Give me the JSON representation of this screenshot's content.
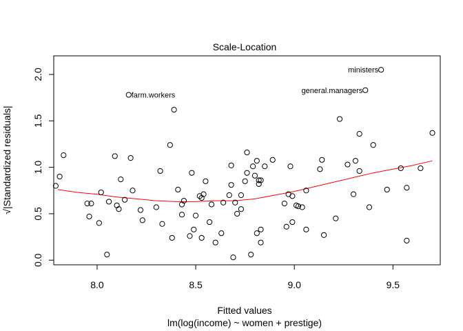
{
  "chart_data": {
    "type": "scatter",
    "title": "Scale-Location",
    "xlabel": "Fitted values",
    "subtitle": "lm(log(income) ~ women + prestige)",
    "ylabel": "√|Standardized residuals|",
    "xlim": [
      7.78,
      9.74
    ],
    "ylim": [
      -0.05,
      2.2
    ],
    "x_ticks": [
      8.0,
      8.5,
      9.0,
      9.5
    ],
    "x_tick_labels": [
      "8.0",
      "8.5",
      "9.0",
      "9.5"
    ],
    "y_ticks": [
      0.0,
      0.5,
      1.0,
      1.5,
      2.0
    ],
    "y_tick_labels": [
      "0.0",
      "0.5",
      "1.0",
      "1.5",
      "2.0"
    ],
    "grid": false,
    "point_color": "#000000",
    "smooth_color": "#ff0000",
    "points": [
      {
        "x": 8.16,
        "y": 1.78,
        "label": "farm.workers"
      },
      {
        "x": 9.36,
        "y": 1.83,
        "label": "general.managers"
      },
      {
        "x": 9.44,
        "y": 2.05,
        "label": "ministers"
      },
      {
        "x": 7.79,
        "y": 0.8
      },
      {
        "x": 7.81,
        "y": 0.9
      },
      {
        "x": 7.83,
        "y": 1.13
      },
      {
        "x": 7.95,
        "y": 0.61
      },
      {
        "x": 7.96,
        "y": 0.47
      },
      {
        "x": 7.97,
        "y": 0.61
      },
      {
        "x": 8.01,
        "y": 0.4
      },
      {
        "x": 8.02,
        "y": 0.73
      },
      {
        "x": 8.05,
        "y": 0.06
      },
      {
        "x": 8.06,
        "y": 0.63
      },
      {
        "x": 8.09,
        "y": 1.12
      },
      {
        "x": 8.1,
        "y": 0.59
      },
      {
        "x": 8.11,
        "y": 0.55
      },
      {
        "x": 8.12,
        "y": 0.87
      },
      {
        "x": 8.14,
        "y": 0.65
      },
      {
        "x": 8.17,
        "y": 1.1
      },
      {
        "x": 8.18,
        "y": 0.75
      },
      {
        "x": 8.22,
        "y": 0.54
      },
      {
        "x": 8.23,
        "y": 0.43
      },
      {
        "x": 8.3,
        "y": 0.57
      },
      {
        "x": 8.32,
        "y": 0.96
      },
      {
        "x": 8.33,
        "y": 0.39
      },
      {
        "x": 8.37,
        "y": 1.24
      },
      {
        "x": 8.38,
        "y": 0.24
      },
      {
        "x": 8.39,
        "y": 1.62
      },
      {
        "x": 8.41,
        "y": 0.76
      },
      {
        "x": 8.43,
        "y": 0.6
      },
      {
        "x": 8.43,
        "y": 0.49
      },
      {
        "x": 8.44,
        "y": 0.64
      },
      {
        "x": 8.47,
        "y": 0.26
      },
      {
        "x": 8.48,
        "y": 0.94
      },
      {
        "x": 8.49,
        "y": 0.33
      },
      {
        "x": 8.5,
        "y": 0.48
      },
      {
        "x": 8.52,
        "y": 0.69
      },
      {
        "x": 8.53,
        "y": 0.24
      },
      {
        "x": 8.53,
        "y": 0.67
      },
      {
        "x": 8.54,
        "y": 0.71
      },
      {
        "x": 8.55,
        "y": 0.85
      },
      {
        "x": 8.57,
        "y": 0.41
      },
      {
        "x": 8.58,
        "y": 0.6
      },
      {
        "x": 8.6,
        "y": 0.19
      },
      {
        "x": 8.63,
        "y": 0.29
      },
      {
        "x": 8.64,
        "y": 0.62
      },
      {
        "x": 8.67,
        "y": 0.7
      },
      {
        "x": 8.68,
        "y": 1.02
      },
      {
        "x": 8.68,
        "y": 0.81
      },
      {
        "x": 8.69,
        "y": 0.03
      },
      {
        "x": 8.7,
        "y": 0.62
      },
      {
        "x": 8.71,
        "y": 0.5
      },
      {
        "x": 8.73,
        "y": 0.7
      },
      {
        "x": 8.73,
        "y": 0.55
      },
      {
        "x": 8.75,
        "y": 0.85
      },
      {
        "x": 8.76,
        "y": 1.16
      },
      {
        "x": 8.76,
        "y": 0.94
      },
      {
        "x": 8.78,
        "y": 0.06
      },
      {
        "x": 8.79,
        "y": 1.01
      },
      {
        "x": 8.8,
        "y": 0.91
      },
      {
        "x": 8.81,
        "y": 1.07
      },
      {
        "x": 8.81,
        "y": 0.29
      },
      {
        "x": 8.82,
        "y": 0.86
      },
      {
        "x": 8.82,
        "y": 0.82
      },
      {
        "x": 8.83,
        "y": 0.33
      },
      {
        "x": 8.83,
        "y": 0.19
      },
      {
        "x": 8.83,
        "y": 0.86
      },
      {
        "x": 8.85,
        "y": 1.01
      },
      {
        "x": 8.89,
        "y": 1.08
      },
      {
        "x": 8.95,
        "y": 0.61
      },
      {
        "x": 8.96,
        "y": 0.36
      },
      {
        "x": 8.97,
        "y": 0.71
      },
      {
        "x": 8.98,
        "y": 1.01
      },
      {
        "x": 8.99,
        "y": 0.69
      },
      {
        "x": 8.99,
        "y": 0.41
      },
      {
        "x": 9.01,
        "y": 0.59
      },
      {
        "x": 9.02,
        "y": 0.58
      },
      {
        "x": 9.04,
        "y": 0.57
      },
      {
        "x": 9.06,
        "y": 0.75
      },
      {
        "x": 9.06,
        "y": 0.33
      },
      {
        "x": 9.13,
        "y": 0.98
      },
      {
        "x": 9.14,
        "y": 1.08
      },
      {
        "x": 9.15,
        "y": 0.27
      },
      {
        "x": 9.21,
        "y": 0.45
      },
      {
        "x": 9.23,
        "y": 1.52
      },
      {
        "x": 9.27,
        "y": 1.03
      },
      {
        "x": 9.3,
        "y": 0.71
      },
      {
        "x": 9.31,
        "y": 1.07
      },
      {
        "x": 9.33,
        "y": 1.36
      },
      {
        "x": 9.33,
        "y": 0.96
      },
      {
        "x": 9.38,
        "y": 0.57
      },
      {
        "x": 9.4,
        "y": 1.24
      },
      {
        "x": 9.47,
        "y": 0.76
      },
      {
        "x": 9.54,
        "y": 0.99
      },
      {
        "x": 9.57,
        "y": 0.78
      },
      {
        "x": 9.57,
        "y": 0.21
      },
      {
        "x": 9.64,
        "y": 0.99
      },
      {
        "x": 9.7,
        "y": 1.37
      }
    ],
    "smooth_line": {
      "x": [
        7.8,
        7.9,
        8.0,
        8.1,
        8.2,
        8.3,
        8.4,
        8.5,
        8.6,
        8.7,
        8.8,
        8.9,
        9.0,
        9.1,
        9.2,
        9.3,
        9.4,
        9.5,
        9.6,
        9.7
      ],
      "y": [
        0.76,
        0.73,
        0.71,
        0.68,
        0.66,
        0.64,
        0.63,
        0.63,
        0.64,
        0.64,
        0.66,
        0.7,
        0.74,
        0.79,
        0.84,
        0.89,
        0.94,
        0.98,
        1.02,
        1.07
      ]
    }
  }
}
